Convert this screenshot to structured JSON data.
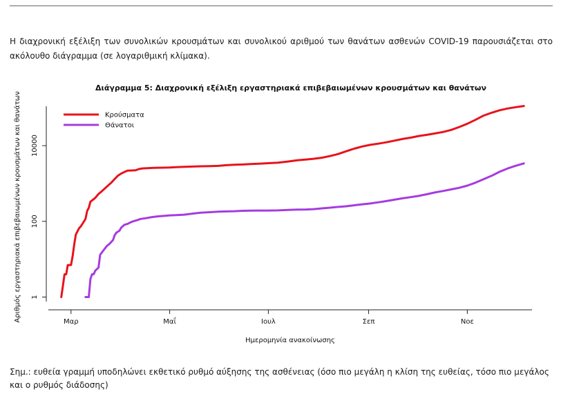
{
  "intro_text": "Η διαχρονική εξέλιξη των συνολικών κρουσμάτων και συνολικού αριθμού των θανάτων ασθενών COVID-19 παρουσιάζεται στο ακόλουθο διάγραμμα (σε λογαριθμική κλίμακα).",
  "note_text": "Σημ.: ευθεία γραμμή υποδηλώνει εκθετικό ρυθμό αύξησης της ασθένειας (όσο πιο μεγάλη η κλίση της ευθείας, τόσο πιο μεγάλος και ο ρυθμός διάδοσης)",
  "chart_data": {
    "type": "line",
    "title": "Διάγραμμα 5: Διαχρονική εξέλιξη εργαστηριακά επιβεβαιωμένων κρουσμάτων και θανάτων",
    "xlabel": "Ημερομηνία ανακοίνωσης",
    "ylabel": "Αριθμός εργαστηριακά επιβεβαιωμένων κρουσμάτων και θανάτων",
    "y_scale": "log",
    "ylim": [
      0.7,
      130000
    ],
    "yticks": [
      1,
      100,
      10000
    ],
    "xlim": [
      -14,
      285
    ],
    "xticks": [
      {
        "label": "Μαρ",
        "day": 0
      },
      {
        "label": "Μαΐ",
        "day": 61
      },
      {
        "label": "Ιουλ",
        "day": 122
      },
      {
        "label": "Σεπ",
        "day": 184
      },
      {
        "label": "Νοε",
        "day": 245
      }
    ],
    "x_unit": "days since 1 Mar",
    "legend_position": "top-left",
    "series": [
      {
        "name": "Κρούσματα",
        "color": "#e8121b",
        "points": [
          [
            -6,
            1
          ],
          [
            -5,
            2
          ],
          [
            -4,
            4
          ],
          [
            -3,
            4
          ],
          [
            -2,
            7
          ],
          [
            0,
            7
          ],
          [
            1,
            12
          ],
          [
            2,
            25
          ],
          [
            3,
            45
          ],
          [
            5,
            66
          ],
          [
            6,
            73
          ],
          [
            8,
            99
          ],
          [
            9,
            117
          ],
          [
            10,
            190
          ],
          [
            11,
            228
          ],
          [
            12,
            331
          ],
          [
            14,
            387
          ],
          [
            15,
            418
          ],
          [
            17,
            530
          ],
          [
            19,
            624
          ],
          [
            21,
            743
          ],
          [
            23,
            892
          ],
          [
            25,
            1061
          ],
          [
            27,
            1314
          ],
          [
            29,
            1613
          ],
          [
            31,
            1832
          ],
          [
            33,
            2011
          ],
          [
            35,
            2192
          ],
          [
            37,
            2207
          ],
          [
            40,
            2245
          ],
          [
            42,
            2408
          ],
          [
            44,
            2506
          ],
          [
            47,
            2534
          ],
          [
            51,
            2591
          ],
          [
            56,
            2620
          ],
          [
            61,
            2650
          ],
          [
            65,
            2710
          ],
          [
            70,
            2760
          ],
          [
            75,
            2800
          ],
          [
            80,
            2850
          ],
          [
            86,
            2880
          ],
          [
            91,
            2917
          ],
          [
            96,
            3050
          ],
          [
            101,
            3120
          ],
          [
            106,
            3180
          ],
          [
            111,
            3270
          ],
          [
            116,
            3340
          ],
          [
            122,
            3440
          ],
          [
            128,
            3560
          ],
          [
            134,
            3800
          ],
          [
            140,
            4100
          ],
          [
            145,
            4300
          ],
          [
            150,
            4500
          ],
          [
            155,
            4800
          ],
          [
            160,
            5300
          ],
          [
            165,
            6000
          ],
          [
            170,
            7100
          ],
          [
            175,
            8300
          ],
          [
            180,
            9500
          ],
          [
            185,
            10500
          ],
          [
            190,
            11300
          ],
          [
            195,
            12300
          ],
          [
            200,
            13600
          ],
          [
            205,
            15000
          ],
          [
            210,
            16300
          ],
          [
            215,
            18000
          ],
          [
            220,
            19300
          ],
          [
            225,
            21000
          ],
          [
            230,
            23000
          ],
          [
            235,
            26000
          ],
          [
            240,
            31000
          ],
          [
            245,
            38000
          ],
          [
            250,
            48000
          ],
          [
            255,
            62000
          ],
          [
            260,
            74000
          ],
          [
            265,
            86000
          ],
          [
            270,
            96000
          ],
          [
            275,
            104000
          ],
          [
            280,
            112000
          ]
        ]
      },
      {
        "name": "Θάνατοι",
        "color": "#a53be0",
        "points": [
          [
            9,
            1
          ],
          [
            10,
            1
          ],
          [
            11,
            1
          ],
          [
            12,
            3
          ],
          [
            13,
            4
          ],
          [
            14,
            4
          ],
          [
            15,
            5
          ],
          [
            17,
            6
          ],
          [
            18,
            13
          ],
          [
            20,
            17
          ],
          [
            22,
            22
          ],
          [
            24,
            26
          ],
          [
            26,
            32
          ],
          [
            27,
            43
          ],
          [
            28,
            50
          ],
          [
            30,
            57
          ],
          [
            31,
            68
          ],
          [
            33,
            81
          ],
          [
            35,
            86
          ],
          [
            37,
            95
          ],
          [
            39,
            102
          ],
          [
            41,
            108
          ],
          [
            43,
            116
          ],
          [
            46,
            121
          ],
          [
            50,
            130
          ],
          [
            54,
            136
          ],
          [
            58,
            140
          ],
          [
            61,
            144
          ],
          [
            65,
            146
          ],
          [
            70,
            150
          ],
          [
            75,
            160
          ],
          [
            80,
            170
          ],
          [
            86,
            175
          ],
          [
            91,
            180
          ],
          [
            96,
            183
          ],
          [
            101,
            185
          ],
          [
            106,
            190
          ],
          [
            111,
            192
          ],
          [
            116,
            193
          ],
          [
            122,
            193
          ],
          [
            128,
            195
          ],
          [
            134,
            200
          ],
          [
            140,
            204
          ],
          [
            145,
            206
          ],
          [
            150,
            210
          ],
          [
            155,
            220
          ],
          [
            160,
            230
          ],
          [
            165,
            240
          ],
          [
            170,
            250
          ],
          [
            175,
            266
          ],
          [
            180,
            282
          ],
          [
            185,
            297
          ],
          [
            190,
            318
          ],
          [
            195,
            344
          ],
          [
            200,
            374
          ],
          [
            205,
            406
          ],
          [
            210,
            436
          ],
          [
            215,
            470
          ],
          [
            220,
            521
          ],
          [
            225,
            580
          ],
          [
            230,
            635
          ],
          [
            235,
            699
          ],
          [
            240,
            770
          ],
          [
            245,
            880
          ],
          [
            250,
            1050
          ],
          [
            255,
            1300
          ],
          [
            260,
            1600
          ],
          [
            265,
            2050
          ],
          [
            270,
            2500
          ],
          [
            275,
            2950
          ],
          [
            280,
            3400
          ]
        ]
      }
    ]
  }
}
